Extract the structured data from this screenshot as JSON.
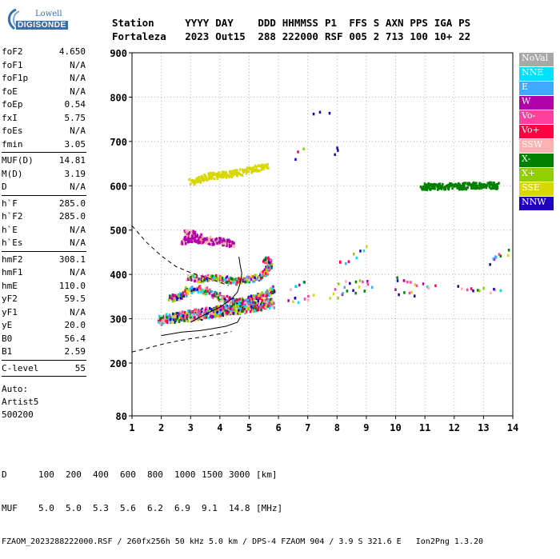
{
  "logo": {
    "brand": "Lowell",
    "product": "DIGISONDE"
  },
  "header": {
    "line1": [
      "Station",
      "YYYY",
      "DAY",
      "DDD",
      "HHMMSS",
      "P1",
      "FFS",
      "S",
      "AXN",
      "PPS",
      "IGA",
      "PS"
    ],
    "line2": [
      "Fortaleza",
      "2023",
      "Out15",
      "288",
      "222000",
      "RSF",
      "005",
      "2",
      "713",
      "100",
      "10+",
      "22"
    ]
  },
  "params": [
    {
      "name": "foF2",
      "value": "4.650"
    },
    {
      "name": "foF1",
      "value": "N/A"
    },
    {
      "name": "foF1p",
      "value": "N/A"
    },
    {
      "name": "foE",
      "value": "N/A"
    },
    {
      "name": "foEp",
      "value": "0.54"
    },
    {
      "name": "fxI",
      "value": "5.75"
    },
    {
      "name": "foEs",
      "value": "N/A"
    },
    {
      "name": "fmin",
      "value": "3.05"
    },
    {
      "sep": true
    },
    {
      "name": "MUF(D)",
      "value": "14.81"
    },
    {
      "name": "M(D)",
      "value": "3.19"
    },
    {
      "name": "D",
      "value": "N/A"
    },
    {
      "sep": true
    },
    {
      "name": "h`F",
      "value": "285.0"
    },
    {
      "name": "h`F2",
      "value": "285.0"
    },
    {
      "name": "h`E",
      "value": "N/A"
    },
    {
      "name": "h`Es",
      "value": "N/A"
    },
    {
      "sep": true
    },
    {
      "name": "hmF2",
      "value": "308.1"
    },
    {
      "name": "hmF1",
      "value": "N/A"
    },
    {
      "name": "hmE",
      "value": "110.0"
    },
    {
      "name": "yF2",
      "value": "59.5"
    },
    {
      "name": "yF1",
      "value": "N/A"
    },
    {
      "name": "yE",
      "value": "20.0"
    },
    {
      "name": "B0",
      "value": "56.4"
    },
    {
      "name": "B1",
      "value": "2.59"
    },
    {
      "sep": true
    },
    {
      "name": "C-level",
      "value": "55"
    },
    {
      "sep": true
    }
  ],
  "auto": [
    "Auto:",
    "Artist5",
    "500200"
  ],
  "footer": {
    "d_row": [
      "D",
      "100",
      "200",
      "400",
      "600",
      "800",
      "1000",
      "1500",
      "3000",
      "[km]"
    ],
    "muf_row": [
      "MUF",
      "5.0",
      "5.0",
      "5.3",
      "5.6",
      "6.2",
      "6.9",
      "9.1",
      "14.8",
      "[MHz]"
    ],
    "source": "FZAOM_2023288222000.RSF / 260fx256h 50 kHz 5.0 km / DPS-4 FZAOM 904 / 3.9 S 321.6 E",
    "version": "Ion2Png 1.3.20"
  },
  "legend": [
    {
      "label": "NoVal",
      "color": "#a8a8a8"
    },
    {
      "label": "NNE",
      "color": "#00e0ff"
    },
    {
      "label": "E",
      "color": "#40a8ff"
    },
    {
      "label": "W",
      "color": "#b000a8"
    },
    {
      "label": "Vo-",
      "color": "#ff40a0"
    },
    {
      "label": "Vo+",
      "color": "#ff0040"
    },
    {
      "label": "SSW",
      "color": "#ffb0b0"
    },
    {
      "label": "X-",
      "color": "#008000"
    },
    {
      "label": "X+",
      "color": "#90d000"
    },
    {
      "label": "SSE",
      "color": "#d8d800"
    },
    {
      "label": "NNW",
      "color": "#2000c0"
    }
  ],
  "chart_data": {
    "type": "scatter",
    "title": "",
    "xlabel": "",
    "ylabel": "",
    "xlim": [
      1,
      14
    ],
    "ylim": [
      80,
      900
    ],
    "x_ticks": [
      1,
      2,
      3,
      4,
      5,
      6,
      7,
      8,
      9,
      10,
      11,
      12,
      13,
      14
    ],
    "y_ticks": [
      80,
      200,
      300,
      400,
      500,
      600,
      700,
      800,
      900
    ],
    "grid": true,
    "legend_position": "right",
    "traces": [
      {
        "points": [
          [
            3.0,
            611
          ],
          [
            3.3,
            618
          ],
          [
            3.7,
            625
          ],
          [
            4.1,
            628
          ],
          [
            4.6,
            632
          ],
          [
            5.1,
            640
          ],
          [
            5.6,
            650
          ]
        ]
      },
      {
        "points": [
          [
            6.5,
            668
          ],
          [
            6.9,
            689
          ]
        ]
      },
      {
        "points": [
          [
            7.1,
            760
          ],
          [
            8.1,
            778
          ]
        ]
      },
      {
        "points": [
          [
            7.9,
            682
          ],
          [
            8.1,
            674
          ]
        ]
      },
      {
        "points": [
          [
            10.9,
            601
          ],
          [
            11.2,
            601
          ],
          [
            11.5,
            601
          ],
          [
            12.0,
            601
          ],
          [
            12.3,
            602
          ],
          [
            12.7,
            603
          ],
          [
            13.2,
            604
          ],
          [
            13.5,
            603
          ]
        ]
      },
      {
        "points": [
          [
            2.7,
            478
          ],
          [
            3.0,
            484
          ],
          [
            3.3,
            480
          ],
          [
            3.7,
            477
          ],
          [
            4.1,
            476
          ],
          [
            4.4,
            471
          ],
          [
            2.8,
            497
          ],
          [
            3.2,
            492
          ]
        ]
      },
      {
        "points": [
          [
            2.9,
            397
          ],
          [
            3.3,
            392
          ],
          [
            3.7,
            395
          ],
          [
            4.1,
            392
          ],
          [
            4.5,
            387
          ],
          [
            4.9,
            390
          ],
          [
            5.3,
            397
          ],
          [
            5.6,
            412
          ],
          [
            5.7,
            430
          ],
          [
            5.5,
            440
          ]
        ]
      },
      {
        "points": [
          [
            2.3,
            349
          ],
          [
            2.6,
            352
          ],
          [
            2.9,
            368
          ],
          [
            3.3,
            370
          ],
          [
            3.7,
            359
          ],
          [
            4.1,
            348
          ],
          [
            4.5,
            341
          ],
          [
            4.9,
            343
          ],
          [
            5.2,
            352
          ],
          [
            5.6,
            359
          ],
          [
            5.8,
            372
          ]
        ]
      },
      {
        "points": [
          [
            1.9,
            302
          ],
          [
            2.3,
            308
          ],
          [
            2.7,
            312
          ],
          [
            3.1,
            316
          ],
          [
            3.5,
            320
          ],
          [
            3.9,
            324
          ],
          [
            4.3,
            328
          ],
          [
            4.7,
            331
          ],
          [
            5.1,
            334
          ],
          [
            5.5,
            338
          ],
          [
            5.8,
            343
          ]
        ]
      },
      {
        "points": [
          [
            1.9,
            297
          ],
          [
            2.3,
            301
          ],
          [
            2.7,
            304
          ],
          [
            3.1,
            306
          ],
          [
            3.5,
            310
          ],
          [
            3.9,
            315
          ],
          [
            4.3,
            319
          ],
          [
            4.7,
            322
          ],
          [
            5.1,
            326
          ],
          [
            5.5,
            330
          ],
          [
            5.8,
            334
          ]
        ]
      },
      {
        "points": [
          [
            6.3,
            342
          ],
          [
            6.6,
            345
          ],
          [
            7.0,
            349
          ],
          [
            7.2,
            352
          ]
        ]
      },
      {
        "points": [
          [
            6.4,
            375
          ],
          [
            6.7,
            383
          ],
          [
            7.0,
            392
          ]
        ]
      },
      {
        "points": [
          [
            7.8,
            352
          ],
          [
            8.1,
            358
          ],
          [
            8.5,
            365
          ],
          [
            8.9,
            372
          ],
          [
            9.2,
            379
          ]
        ]
      },
      {
        "points": [
          [
            7.9,
            375
          ],
          [
            8.3,
            381
          ],
          [
            8.7,
            388
          ],
          [
            9.1,
            394
          ]
        ]
      },
      {
        "points": [
          [
            8.0,
            426
          ],
          [
            8.4,
            438
          ],
          [
            8.8,
            451
          ],
          [
            9.1,
            465
          ]
        ]
      },
      {
        "points": [
          [
            10.0,
            391
          ],
          [
            10.3,
            388
          ],
          [
            10.6,
            383
          ],
          [
            11.0,
            376
          ],
          [
            11.4,
            373
          ]
        ]
      },
      {
        "points": [
          [
            10.0,
            363
          ],
          [
            10.4,
            361
          ],
          [
            10.8,
            359
          ]
        ]
      },
      {
        "points": [
          [
            12.1,
            377
          ],
          [
            12.5,
            373
          ],
          [
            12.9,
            368
          ],
          [
            13.3,
            364
          ],
          [
            13.6,
            361
          ]
        ]
      },
      {
        "points": [
          [
            13.2,
            430
          ],
          [
            13.4,
            445
          ],
          [
            13.9,
            452
          ],
          [
            13.0,
            423
          ]
        ]
      }
    ],
    "curves": [
      {
        "style": "dashed",
        "points": [
          [
            1.0,
            510
          ],
          [
            1.5,
            472
          ],
          [
            2.0,
            442
          ],
          [
            2.5,
            418
          ],
          [
            3.0,
            404
          ],
          [
            3.5,
            394
          ],
          [
            4.0,
            382
          ],
          [
            4.3,
            375
          ]
        ]
      },
      {
        "style": "dashed",
        "points": [
          [
            1.0,
            225
          ],
          [
            1.5,
            233
          ],
          [
            2.0,
            242
          ],
          [
            2.5,
            249
          ],
          [
            3.0,
            255
          ],
          [
            3.5,
            260
          ],
          [
            4.0,
            266
          ],
          [
            4.4,
            271
          ]
        ]
      },
      {
        "style": "solid",
        "points": [
          [
            2.0,
            262
          ],
          [
            2.7,
            270
          ],
          [
            3.3,
            273
          ],
          [
            3.7,
            277
          ],
          [
            4.2,
            283
          ],
          [
            4.6,
            292
          ],
          [
            4.7,
            304
          ]
        ]
      },
      {
        "style": "solid",
        "points": [
          [
            3.0,
            292
          ],
          [
            3.5,
            310
          ],
          [
            4.0,
            326
          ],
          [
            4.4,
            345
          ],
          [
            4.6,
            360
          ],
          [
            4.7,
            382
          ],
          [
            4.75,
            402
          ],
          [
            4.7,
            418
          ],
          [
            4.65,
            440
          ]
        ]
      }
    ],
    "axis_annotations": {
      "max_height_label": "900",
      "min_height_label": "80"
    }
  }
}
